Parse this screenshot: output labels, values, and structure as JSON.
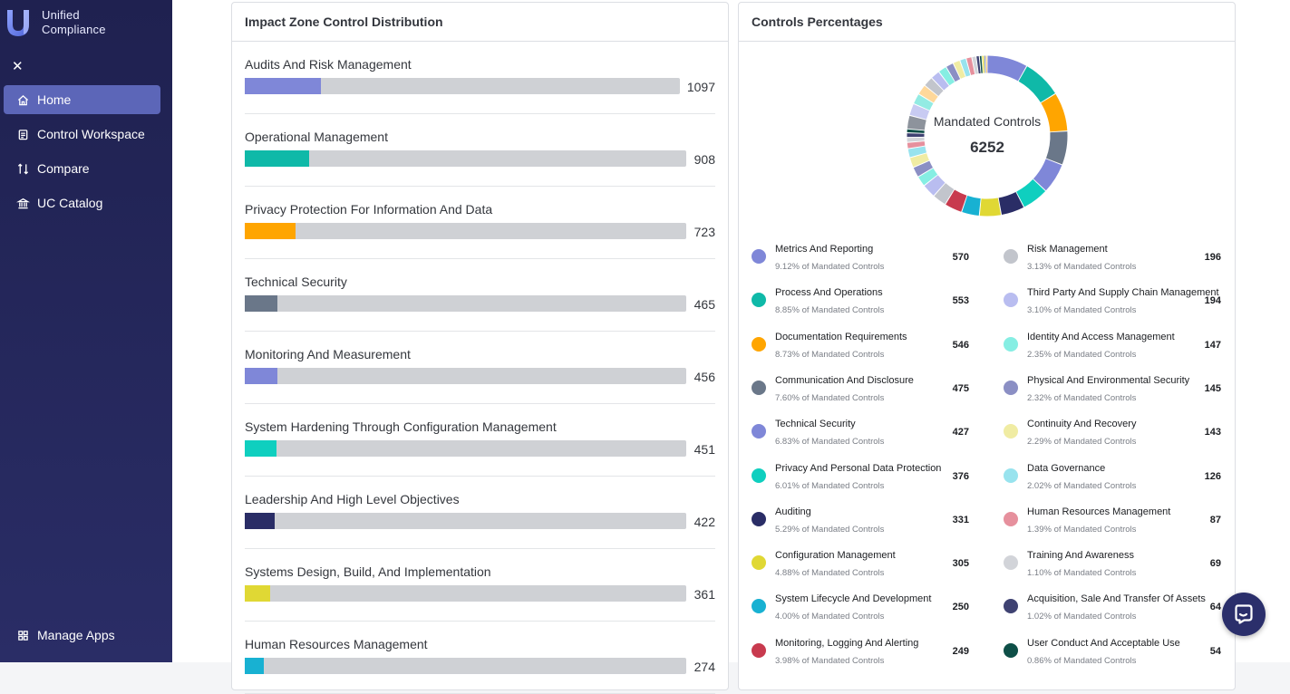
{
  "brand": {
    "line1": "Unified",
    "line2": "Compliance"
  },
  "nav": {
    "items": [
      {
        "label": "Home",
        "icon": "home-icon",
        "active": true
      },
      {
        "label": "Control Workspace",
        "icon": "workspace-icon",
        "active": false
      },
      {
        "label": "Compare",
        "icon": "compare-icon",
        "active": false
      },
      {
        "label": "UC Catalog",
        "icon": "catalog-icon",
        "active": false
      }
    ],
    "manage_label": "Manage Apps"
  },
  "distribution": {
    "title": "Impact Zone Control Distribution",
    "max": 6252,
    "rows": [
      {
        "label": "Audits And Risk Management",
        "value": "1097",
        "n": 1097,
        "color": "#7f87d8"
      },
      {
        "label": "Operational Management",
        "value": "908",
        "n": 908,
        "color": "#0fb9a8"
      },
      {
        "label": "Privacy Protection For Information And Data",
        "value": "723",
        "n": 723,
        "color": "#ffa500"
      },
      {
        "label": "Technical Security",
        "value": "465",
        "n": 465,
        "color": "#6a7789"
      },
      {
        "label": "Monitoring And Measurement",
        "value": "456",
        "n": 456,
        "color": "#7f87d8"
      },
      {
        "label": "System Hardening Through Configuration Management",
        "value": "451",
        "n": 451,
        "color": "#0fcfbf"
      },
      {
        "label": "Leadership And High Level Objectives",
        "value": "422",
        "n": 422,
        "color": "#2a2d66"
      },
      {
        "label": "Systems Design, Build, And Implementation",
        "value": "361",
        "n": 361,
        "color": "#e0d834"
      },
      {
        "label": "Human Resources Management",
        "value": "274",
        "n": 274,
        "color": "#18b1d2"
      }
    ]
  },
  "percentages": {
    "title": "Controls Percentages",
    "center_label": "Mandated Controls",
    "center_value": "6252",
    "legend": [
      {
        "name": "Metrics And Reporting",
        "pct": "9.12% of Mandated Controls",
        "value": "570",
        "color": "#7f87d8"
      },
      {
        "name": "Process And Operations",
        "pct": "8.85% of Mandated Controls",
        "value": "553",
        "color": "#0fb9a8"
      },
      {
        "name": "Documentation Requirements",
        "pct": "8.73% of Mandated Controls",
        "value": "546",
        "color": "#ffa500"
      },
      {
        "name": "Communication And Disclosure",
        "pct": "7.60% of Mandated Controls",
        "value": "475",
        "color": "#6a7789"
      },
      {
        "name": "Technical Security",
        "pct": "6.83% of Mandated Controls",
        "value": "427",
        "color": "#7f87d8"
      },
      {
        "name": "Privacy And Personal Data Protection",
        "pct": "6.01% of Mandated Controls",
        "value": "376",
        "color": "#0fcfbf"
      },
      {
        "name": "Auditing",
        "pct": "5.29% of Mandated Controls",
        "value": "331",
        "color": "#2a2d66"
      },
      {
        "name": "Configuration Management",
        "pct": "4.88% of Mandated Controls",
        "value": "305",
        "color": "#e0d834"
      },
      {
        "name": "System Lifecycle And Development",
        "pct": "4.00% of Mandated Controls",
        "value": "250",
        "color": "#18b1d2"
      },
      {
        "name": "Monitoring, Logging And Alerting",
        "pct": "3.98% of Mandated Controls",
        "value": "249",
        "color": "#c83a4e"
      },
      {
        "name": "Risk Management",
        "pct": "3.13% of Mandated Controls",
        "value": "196",
        "color": "#c2c5cc"
      },
      {
        "name": "Third Party And Supply Chain Management",
        "pct": "3.10% of Mandated Controls",
        "value": "194",
        "color": "#b9bdf0"
      },
      {
        "name": "Identity And Access Management",
        "pct": "2.35% of Mandated Controls",
        "value": "147",
        "color": "#86eee3"
      },
      {
        "name": "Physical And Environmental Security",
        "pct": "2.32% of Mandated Controls",
        "value": "145",
        "color": "#8b8fc4"
      },
      {
        "name": "Continuity And Recovery",
        "pct": "2.29% of Mandated Controls",
        "value": "143",
        "color": "#f0eca3"
      },
      {
        "name": "Data Governance",
        "pct": "2.02% of Mandated Controls",
        "value": "126",
        "color": "#98e3ee"
      },
      {
        "name": "Human Resources Management",
        "pct": "1.39% of Mandated Controls",
        "value": "87",
        "color": "#e6909d"
      },
      {
        "name": "Training And Awareness",
        "pct": "1.10% of Mandated Controls",
        "value": "69",
        "color": "#d2d4d9"
      },
      {
        "name": "Acquisition, Sale And Transfer Of Assets",
        "pct": "1.02% of Mandated Controls",
        "value": "64",
        "color": "#3f4272"
      },
      {
        "name": "User Conduct And Acceptable Use",
        "pct": "0.86% of Mandated Controls",
        "value": "54",
        "color": "#0e4f47"
      }
    ],
    "extra_ring_segments": [
      {
        "value": 190,
        "color": "#8d939c"
      },
      {
        "value": 170,
        "color": "#c8cbf2"
      },
      {
        "value": 150,
        "color": "#93ebe3"
      },
      {
        "value": 145,
        "color": "#ffd89a"
      },
      {
        "value": 140,
        "color": "#c2c5cc"
      },
      {
        "value": 130,
        "color": "#b9bdf0"
      },
      {
        "value": 120,
        "color": "#86eee3"
      },
      {
        "value": 110,
        "color": "#8b8fc4"
      },
      {
        "value": 100,
        "color": "#f0eca3"
      },
      {
        "value": 90,
        "color": "#98e3ee"
      },
      {
        "value": 80,
        "color": "#e6909d"
      },
      {
        "value": 60,
        "color": "#d2d4d9"
      },
      {
        "value": 45,
        "color": "#3f4272"
      },
      {
        "value": 35,
        "color": "#0e4f47"
      },
      {
        "value": 30,
        "color": "#e0d834"
      },
      {
        "value": 25,
        "color": "#6a7789"
      },
      {
        "value": 20,
        "color": "#ffa500"
      }
    ]
  }
}
